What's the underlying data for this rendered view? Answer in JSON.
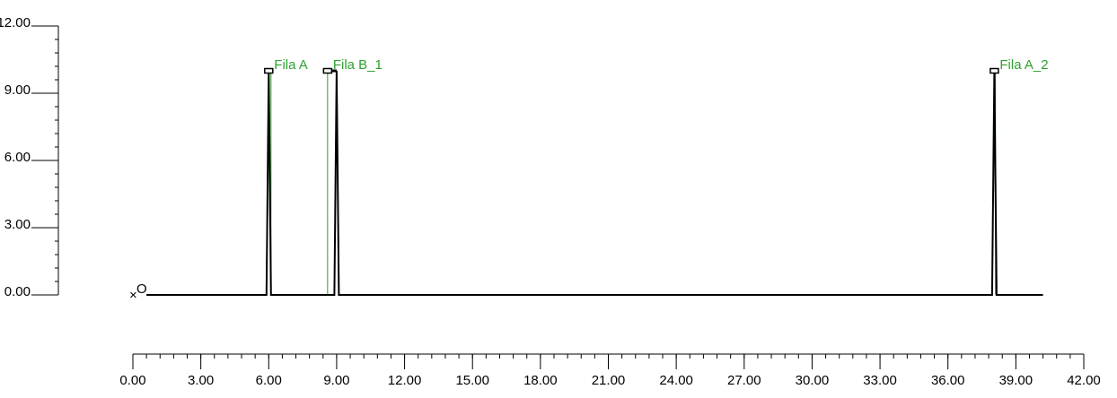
{
  "chart_data": {
    "type": "line",
    "title": "",
    "xlabel": "",
    "ylabel": "",
    "xlim": [
      0,
      42
    ],
    "ylim": [
      0,
      12
    ],
    "x_ticks": [
      "0.00",
      "3.00",
      "6.00",
      "9.00",
      "12.00",
      "15.00",
      "18.00",
      "21.00",
      "24.00",
      "27.00",
      "30.00",
      "33.00",
      "36.00",
      "39.00",
      "42.00"
    ],
    "y_ticks": [
      "0.00",
      "3.00",
      "6.00",
      "9.00",
      "12.00"
    ],
    "x_minor_step": 0.6,
    "y_minor_step": 0.6,
    "grid": false,
    "series": [
      {
        "color": "#000000",
        "x": [
          0.6,
          5.9,
          6.0,
          6.1,
          6.1,
          8.9,
          9.0,
          9.1,
          9.1,
          37.95,
          38.05,
          38.15,
          38.15,
          40.2
        ],
        "values": [
          0,
          0,
          10,
          0,
          0,
          0,
          10,
          0,
          0,
          0,
          10,
          0,
          0,
          0
        ]
      }
    ],
    "markers": [
      {
        "label": "Fila A",
        "x": 6.0,
        "y": 10,
        "color": "#2ea02e",
        "line_x": 6.1
      },
      {
        "label": "Fila B_1",
        "x": 8.6,
        "y": 10,
        "color": "#2ea02e",
        "line_x": 8.6
      },
      {
        "label": "Fila A_2",
        "x": 38.05,
        "y": 10,
        "color": "#2ea02e",
        "line_x": 38.1
      }
    ],
    "plateaus": [
      {
        "x0": 8.5,
        "x1": 9.0,
        "y": 10
      }
    ],
    "origin": {
      "label": "O",
      "marker": "×",
      "x": 0,
      "y": 0
    }
  }
}
